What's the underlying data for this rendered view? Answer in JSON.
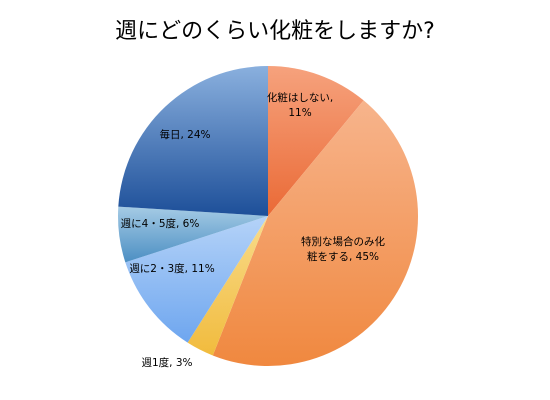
{
  "chart_data": {
    "type": "pie",
    "title": "週にどのくらい化粧をしますか?",
    "start_angle_deg": 0,
    "direction": "clockwise",
    "legend": "none",
    "slices": [
      {
        "label_lines": [
          "化粧はしない,",
          "11%"
        ],
        "category": "化粧はしない",
        "value": 11,
        "color_light": "#f6a27d",
        "color_dark": "#ea6a36"
      },
      {
        "label_lines": [
          "特別な場合のみ化",
          "粧をする, 45%"
        ],
        "category": "特別な場合のみ化粧をする",
        "value": 45,
        "color_light": "#f7b48c",
        "color_dark": "#f0883f"
      },
      {
        "label_lines": [
          "週1度, 3%"
        ],
        "category": "週1度",
        "value": 3,
        "color_light": "#f8dc8c",
        "color_dark": "#f1bb3d"
      },
      {
        "label_lines": [
          "週に2・3度, 11%"
        ],
        "category": "週に2・3度",
        "value": 11,
        "color_light": "#b5d3f8",
        "color_dark": "#6ea6ef"
      },
      {
        "label_lines": [
          "週に4・5度, 6%"
        ],
        "category": "週に4・5度",
        "value": 6,
        "color_light": "#a5cbe5",
        "color_dark": "#4c8fc3"
      },
      {
        "label_lines": [
          "毎日, 24%"
        ],
        "category": "毎日",
        "value": 24,
        "color_light": "#8ab0de",
        "color_dark": "#1d4f99"
      }
    ]
  }
}
